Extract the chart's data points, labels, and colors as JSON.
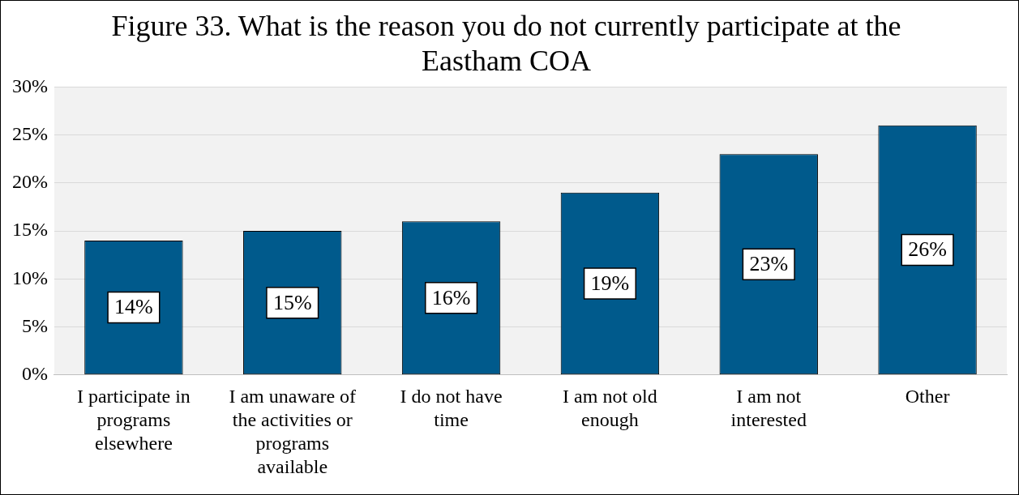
{
  "chart_data": {
    "type": "bar",
    "title": "Figure 33. What is the reason you do not currently participate at the Eastham COA",
    "categories": [
      "I participate in programs elsewhere",
      "I am unaware of the activities or programs available",
      "I do not have time",
      "I am not old enough",
      "I am not interested",
      "Other"
    ],
    "values": [
      14,
      15,
      16,
      19,
      23,
      26
    ],
    "value_labels": [
      "14%",
      "15%",
      "16%",
      "19%",
      "23%",
      "26%"
    ],
    "color": "#005a8c",
    "ylim": [
      0,
      30
    ],
    "yticks": [
      {
        "value": 0,
        "label": "0%"
      },
      {
        "value": 5,
        "label": "5%"
      },
      {
        "value": 10,
        "label": "10%"
      },
      {
        "value": 15,
        "label": "15%"
      },
      {
        "value": 20,
        "label": "20%"
      },
      {
        "value": 25,
        "label": "25%"
      },
      {
        "value": 30,
        "label": "30%"
      }
    ],
    "grid": "y",
    "legend": false
  }
}
